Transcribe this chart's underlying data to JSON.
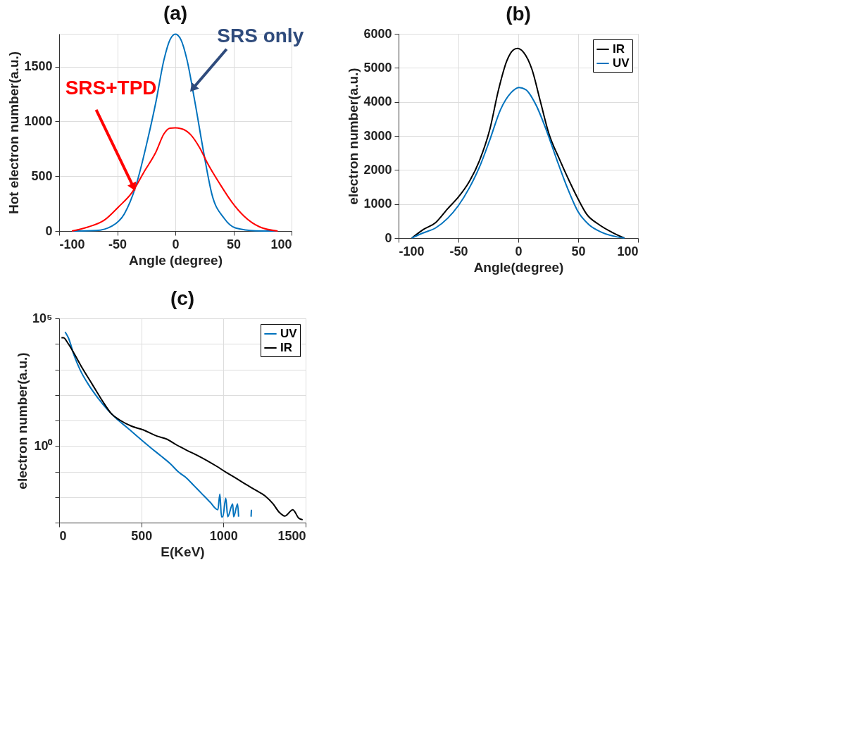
{
  "chart_data": [
    {
      "type": "line",
      "title": "(a)",
      "xlabel": "Angle (degree)",
      "ylabel": "Hot electron number(a.u.)",
      "xlim": [
        -100,
        100
      ],
      "xticks": [
        -100,
        -50,
        0,
        50,
        100
      ],
      "ylim": [
        0,
        1800
      ],
      "yticks": [
        0,
        500,
        1000,
        1500
      ],
      "grid": true,
      "legend": false,
      "annotations": [
        {
          "text": "SRS only",
          "x": 15,
          "y": 1300
        },
        {
          "text": "SRS+TPD",
          "x": -36,
          "y": 400
        }
      ],
      "series": [
        {
          "color": "#0072bd",
          "x": [
            -89,
            -68,
            -54.5,
            -44,
            -34,
            -23.5,
            -16.7,
            -9.8,
            -4.6,
            0,
            4.8,
            10,
            16.8,
            24.6,
            31.4,
            41.8,
            52,
            69,
            88
          ],
          "values": [
            0,
            5,
            46,
            155,
            411,
            850,
            1180,
            1563,
            1746,
            1797,
            1746,
            1563,
            1180,
            704,
            338,
            119,
            27,
            2,
            0
          ]
        },
        {
          "color": "#ff0000",
          "x": [
            -89,
            -75,
            -61,
            -49,
            -37,
            -27,
            -16.7,
            -9.8,
            -4.6,
            0,
            5.7,
            13.4,
            21,
            28,
            38.3,
            48.6,
            59,
            72.7,
            88
          ],
          "values": [
            0,
            37,
            100,
            219,
            356,
            539,
            722,
            887,
            938,
            941,
            932,
            877,
            759,
            612,
            430,
            265,
            137,
            37,
            0
          ]
        }
      ]
    },
    {
      "type": "line",
      "title": "(b)",
      "xlabel": "Angle(degree)",
      "ylabel": "electron number(a.u.)",
      "xlim": [
        -100,
        100
      ],
      "xticks": [
        -100,
        -50,
        0,
        50,
        100
      ],
      "ylim": [
        0,
        6000
      ],
      "yticks": [
        0,
        1000,
        2000,
        3000,
        4000,
        5000,
        6000
      ],
      "grid": true,
      "legend": "top right",
      "series": [
        {
          "name": "IR",
          "color": "#000000",
          "x": [
            -89,
            -80,
            -69,
            -59,
            -50,
            -41.2,
            -32.5,
            -23.7,
            -16.7,
            -9.6,
            -4.4,
            -0.9,
            4.4,
            11.4,
            18.4,
            25.4,
            34.2,
            43,
            50,
            57,
            67.5,
            78,
            88.6
          ],
          "values": [
            0,
            237,
            456,
            862,
            1206,
            1644,
            2269,
            3206,
            4331,
            5206,
            5519,
            5569,
            5456,
            4956,
            4019,
            3081,
            2331,
            1644,
            1144,
            706,
            394,
            175,
            0
          ]
        },
        {
          "name": "UV",
          "color": "#0072bd",
          "x": [
            -89,
            -80,
            -69,
            -59,
            -50,
            -41.2,
            -32.5,
            -23.7,
            -14.9,
            -6.1,
            0.5,
            6.1,
            15,
            23.7,
            32.5,
            41.2,
            50,
            59,
            69.3,
            88.6
          ],
          "values": [
            0,
            144,
            300,
            581,
            956,
            1456,
            2081,
            2894,
            3769,
            4269,
            4425,
            4363,
            3894,
            3144,
            2269,
            1456,
            769,
            394,
            175,
            0
          ]
        }
      ]
    },
    {
      "type": "line",
      "title": "(c)",
      "xlabel": "E(KeV)",
      "ylabel": "electron number(a.u.)",
      "xlim": [
        0,
        1500
      ],
      "xticks": [
        0,
        500,
        1000,
        1500
      ],
      "ylim": [
        0.001,
        100000
      ],
      "log": "y",
      "yticks": [
        {
          "value": 0.001,
          "label": null
        },
        {
          "value": 0.01,
          "label": null
        },
        {
          "value": 0.1,
          "label": null
        },
        {
          "value": 1,
          "label": "10⁰"
        },
        {
          "value": 10,
          "label": null
        },
        {
          "value": 100,
          "label": null
        },
        {
          "value": 1000,
          "label": null
        },
        {
          "value": 10000,
          "label": null
        },
        {
          "value": 100000,
          "label": "10⁵"
        }
      ],
      "grid": true,
      "legend": "top right",
      "series": [
        {
          "name": "UV",
          "color": "#0072bd",
          "x": [
            36,
            56,
            92,
            128,
            176,
            236,
            296,
            344,
            416,
            500,
            560,
            619,
            679,
            727,
            775,
            823,
            871,
            919,
            966,
            978,
            988,
            996,
            1014,
            1026,
            1056,
            1062,
            1086,
            1092,
            1130,
            1168,
            1170
          ],
          "values": [
            29500,
            17400,
            3400,
            950,
            270,
            76,
            26,
            12.6,
            5.1,
            1.74,
            0.83,
            0.41,
            0.195,
            0.095,
            0.056,
            0.027,
            0.013,
            0.0063,
            0.0032,
            0.013,
            0.0017,
            0.0017,
            0.0091,
            0.0017,
            0.0054,
            0.0017,
            0.0054,
            0.0017,
            null,
            0.0017,
            0.0032
          ]
        },
        {
          "name": "IR",
          "color": "#000000",
          "x": [
            14,
            26,
            56,
            92,
            140,
            200,
            260,
            320,
            368,
            440,
            511,
            595,
            655,
            715,
            775,
            835,
            895,
            955,
            1014,
            1074,
            1134,
            1194,
            1254,
            1302,
            1338,
            1374,
            1422,
            1458,
            1482
          ],
          "values": [
            17400,
            17400,
            10000,
            4100,
            1150,
            270,
            63,
            17.8,
            10.5,
            6.0,
            4.3,
            2.45,
            1.86,
            1.1,
            0.69,
            0.45,
            0.28,
            0.166,
            0.095,
            0.056,
            0.032,
            0.019,
            0.011,
            0.0054,
            0.0026,
            0.0018,
            0.0032,
            0.0015,
            0.0013
          ]
        }
      ]
    }
  ]
}
